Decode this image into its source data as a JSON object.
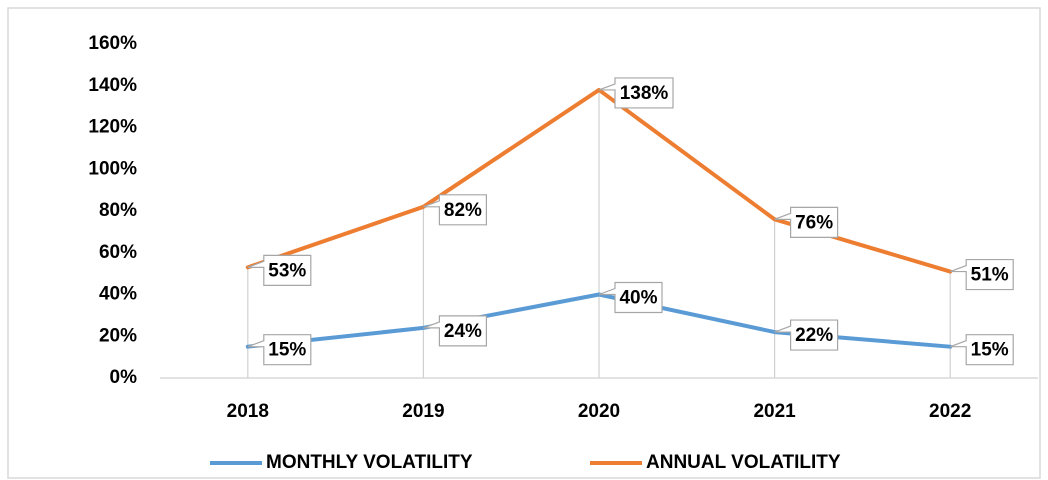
{
  "chart_data": {
    "type": "line",
    "categories": [
      "2018",
      "2019",
      "2020",
      "2021",
      "2022"
    ],
    "series": [
      {
        "name": "MONTHLY VOLATILITY",
        "color": "#5b9bd5",
        "values": [
          15,
          24,
          40,
          22,
          15
        ],
        "value_labels": [
          "15%",
          "24%",
          "40%",
          "22%",
          "15%"
        ]
      },
      {
        "name": "ANNUAL VOLATILITY",
        "color": "#ed7d31",
        "values": [
          53,
          82,
          138,
          76,
          51
        ],
        "value_labels": [
          "53%",
          "82%",
          "138%",
          "76%",
          "51%"
        ]
      }
    ],
    "ylim": [
      0,
      160
    ],
    "yticks": [
      {
        "value": 0,
        "label": "0%"
      },
      {
        "value": 20,
        "label": "20%"
      },
      {
        "value": 40,
        "label": "40%"
      },
      {
        "value": 60,
        "label": "60%"
      },
      {
        "value": 80,
        "label": "80%"
      },
      {
        "value": 100,
        "label": "100%"
      },
      {
        "value": 120,
        "label": "120%"
      },
      {
        "value": 140,
        "label": "140%"
      },
      {
        "value": 160,
        "label": "160%"
      }
    ],
    "grid": false,
    "legend": "bottom"
  }
}
